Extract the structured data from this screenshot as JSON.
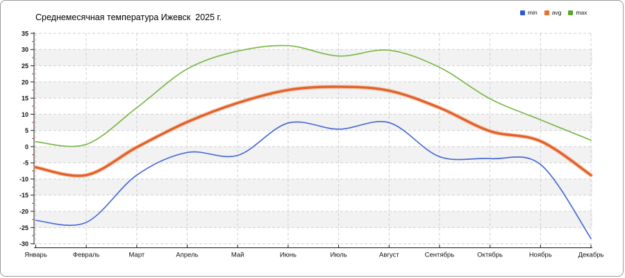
{
  "title": "Среднемесячная температура Ижевск  2025 г.",
  "legend": {
    "items": [
      {
        "label": "min",
        "color": "#2b59d8"
      },
      {
        "label": "avg",
        "color": "#e8722e"
      },
      {
        "label": "max",
        "color": "#57a829"
      }
    ]
  },
  "chart_data": {
    "type": "line",
    "title": "Среднемесячная температура Ижевск  2025 г.",
    "categories": [
      "Январь",
      "Февраль",
      "Март",
      "Апрель",
      "Май",
      "Июнь",
      "Июль",
      "Август",
      "Сентябрь",
      "Октябрь",
      "Ноябрь",
      "Декабрь"
    ],
    "series": [
      {
        "name": "max",
        "color": "#79b848",
        "line_width": 1.7,
        "values": [
          1.5,
          0.7,
          12.0,
          24.0,
          29.5,
          31.2,
          28.0,
          29.8,
          24.5,
          14.8,
          8.3,
          2.0
        ]
      },
      {
        "name": "min",
        "color": "#4a6bd5",
        "line_width": 1.7,
        "values": [
          -22.8,
          -23.4,
          -8.8,
          -1.8,
          -2.7,
          7.3,
          5.4,
          7.4,
          -3.1,
          -3.7,
          -5.5,
          -28.4
        ]
      },
      {
        "name": "avg",
        "color": "#e2612b",
        "halo_color": "#f2ab80",
        "line_width": 3.4,
        "values": [
          -6.4,
          -8.8,
          -0.2,
          7.6,
          13.5,
          17.5,
          18.5,
          17.3,
          12.0,
          4.8,
          1.7,
          -8.8
        ]
      }
    ],
    "ylim": [
      -30,
      35
    ],
    "ytick_step": 5,
    "yminor_step": 2.5,
    "grid": true,
    "smoothing": "spline",
    "legend_position": "top-right",
    "band_colors": [
      "#ffffff",
      "#f2f2f2"
    ],
    "grid_color": "#cfcfcf",
    "axis_color": "#1a1a1a",
    "minor_tick_color": "#c23b22",
    "tick_label_color": "#111111"
  }
}
